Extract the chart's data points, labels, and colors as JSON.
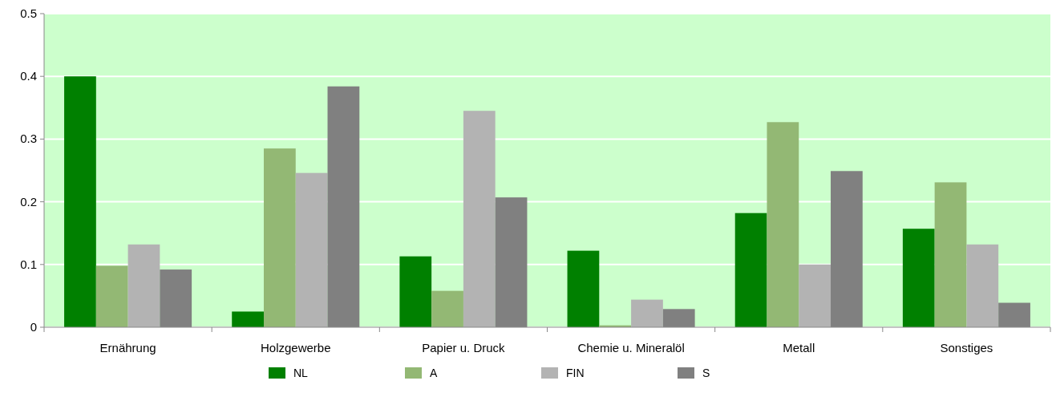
{
  "chart_data": {
    "type": "bar",
    "categories": [
      "Ernährung",
      "Holzgewerbe",
      "Papier u. Druck",
      "Chemie u. Mineralöl",
      "Metall",
      "Sonstiges"
    ],
    "series": [
      {
        "name": "NL",
        "color": "#008000",
        "values": [
          0.4,
          0.025,
          0.113,
          0.122,
          0.182,
          0.157
        ]
      },
      {
        "name": "A",
        "color": "#93b874",
        "values": [
          0.098,
          0.285,
          0.058,
          0.003,
          0.327,
          0.231
        ]
      },
      {
        "name": "FIN",
        "color": "#b3b3b3",
        "values": [
          0.132,
          0.246,
          0.345,
          0.044,
          0.1,
          0.132
        ]
      },
      {
        "name": "S",
        "color": "#808080",
        "values": [
          0.092,
          0.384,
          0.207,
          0.029,
          0.249,
          0.039
        ]
      }
    ],
    "ylim": [
      0,
      0.5
    ],
    "yticks": [
      0,
      0.1,
      0.2,
      0.3,
      0.4,
      0.5
    ],
    "grid": "y",
    "legend": "bottom"
  }
}
